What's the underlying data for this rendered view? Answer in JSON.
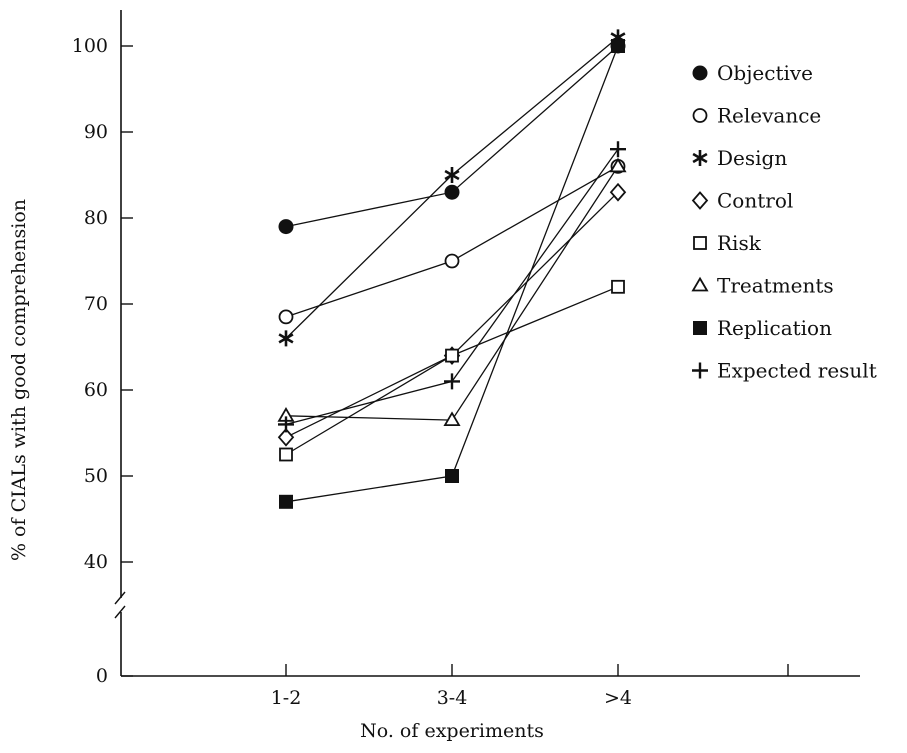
{
  "chart_data": {
    "type": "line",
    "xlabel": "No. of experiments",
    "ylabel": "% of CIALs with good comprehension",
    "categories": [
      "1-2",
      "3-4",
      ">4"
    ],
    "y_ticks": [
      0,
      40,
      50,
      60,
      70,
      80,
      90,
      100
    ],
    "ylim": [
      40,
      100
    ],
    "axis_break": true,
    "grid": false,
    "legend_position": "right",
    "series": [
      {
        "name": "Objective",
        "marker": "filled-circle",
        "values": [
          79,
          83,
          100
        ]
      },
      {
        "name": "Relevance",
        "marker": "open-circle",
        "values": [
          68.5,
          75,
          86
        ]
      },
      {
        "name": "Design",
        "marker": "asterisk",
        "values": [
          66,
          85,
          101
        ]
      },
      {
        "name": "Control",
        "marker": "open-diamond",
        "values": [
          54.5,
          64,
          83
        ]
      },
      {
        "name": "Risk",
        "marker": "open-square",
        "values": [
          52.5,
          64,
          72
        ]
      },
      {
        "name": "Treatments",
        "marker": "open-triangle",
        "values": [
          57,
          56.5,
          86
        ]
      },
      {
        "name": "Replication",
        "marker": "filled-square",
        "values": [
          47,
          50,
          100
        ]
      },
      {
        "name": "Expected result",
        "marker": "plus",
        "values": [
          56,
          61,
          88
        ]
      }
    ]
  }
}
